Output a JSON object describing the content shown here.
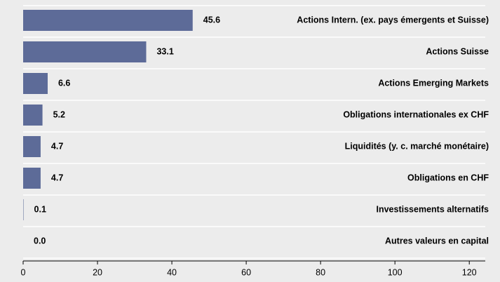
{
  "chart_data": {
    "type": "hbar",
    "categories": [
      "Actions Intern. (ex. pays émergents et Suisse)",
      "Actions Suisse",
      "Actions Emerging Markets",
      "Obligations internationales ex CHF",
      "Liquidités (y. c. marché monétaire)",
      "Obligations en CHF",
      "Investissements alternatifs",
      "Autres valeurs en capital"
    ],
    "values": [
      45.6,
      33.1,
      6.6,
      5.2,
      4.7,
      4.7,
      0.1,
      0.0
    ],
    "value_labels": [
      "45.6",
      "33.1",
      "6.6",
      "5.2",
      "4.7",
      "4.7",
      "0.1",
      "0.0"
    ],
    "color": "#5d6b98",
    "xlim": [
      0,
      124.3
    ],
    "xticks": [
      0,
      20,
      40,
      60,
      80,
      100,
      120
    ]
  }
}
